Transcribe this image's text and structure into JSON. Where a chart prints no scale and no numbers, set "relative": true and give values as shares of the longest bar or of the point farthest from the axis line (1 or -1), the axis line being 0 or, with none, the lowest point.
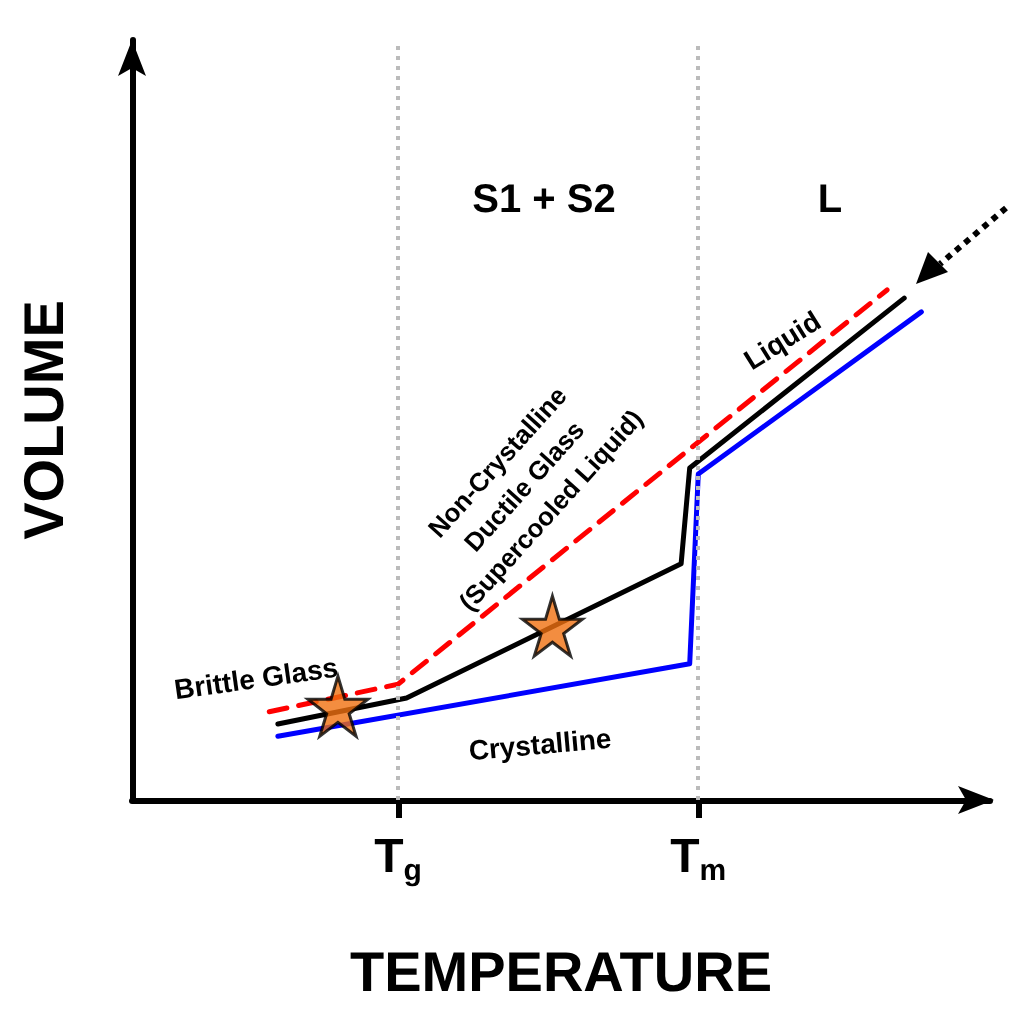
{
  "chart_data": {
    "type": "line",
    "relative": true,
    "xlabel": "TEMPERATURE",
    "ylabel": "VOLUME",
    "categories": [
      null,
      null,
      null,
      null,
      null,
      null,
      null,
      null,
      null,
      null,
      null,
      null,
      null,
      null,
      null,
      null,
      null,
      null,
      null,
      null,
      null,
      null,
      null,
      null,
      null,
      null,
      null,
      null,
      null,
      null,
      null,
      "T$_{g}$",
      null,
      null,
      null,
      null,
      null,
      null,
      null,
      null,
      null,
      null,
      null,
      null,
      null,
      null,
      null,
      null,
      null,
      null,
      null,
      null,
      null,
      null,
      null,
      null,
      null,
      null,
      null,
      null,
      null,
      null,
      null,
      null,
      null,
      null,
      "T$_{m}$",
      null,
      null,
      null,
      null,
      null,
      null,
      null,
      null,
      null,
      null,
      null,
      null,
      null,
      null,
      null,
      null,
      null,
      null,
      null,
      null,
      null,
      null,
      null,
      null,
      null,
      null,
      null,
      null,
      null,
      null,
      null,
      null,
      null,
      null
    ],
    "grid": false,
    "series": [
      {
        "color": "#000000",
        "line_style": "solid",
        "marker": "none",
        "values": [
          null,
          null,
          null,
          null,
          null,
          null,
          null,
          null,
          null,
          null,
          null,
          null,
          null,
          null,
          null,
          null,
          null,
          0.149,
          null,
          null,
          null,
          null,
          null,
          null,
          null,
          null,
          null,
          null,
          null,
          null,
          null,
          null,
          0.2,
          null,
          null,
          null,
          null,
          null,
          null,
          null,
          null,
          null,
          null,
          null,
          null,
          null,
          null,
          null,
          null,
          null,
          null,
          null,
          null,
          null,
          null,
          null,
          null,
          null,
          null,
          null,
          null,
          null,
          null,
          null,
          0.463,
          0.651,
          null,
          null,
          null,
          null,
          null,
          null,
          null,
          null,
          null,
          null,
          null,
          null,
          null,
          null,
          null,
          null,
          null,
          null,
          null,
          null,
          null,
          null,
          null,
          null,
          0.984,
          null,
          null,
          null,
          null,
          null,
          null,
          null,
          null,
          null,
          null
        ]
      },
      {
        "color": "#ff0000",
        "line_style": "dashed",
        "marker": "none",
        "values": [
          null,
          null,
          null,
          null,
          null,
          null,
          null,
          null,
          null,
          null,
          null,
          null,
          null,
          null,
          null,
          null,
          0.173,
          null,
          null,
          null,
          null,
          null,
          null,
          null,
          null,
          null,
          null,
          null,
          null,
          null,
          null,
          0.227,
          null,
          null,
          null,
          null,
          null,
          null,
          null,
          null,
          null,
          null,
          null,
          null,
          null,
          null,
          null,
          null,
          null,
          null,
          null,
          null,
          null,
          null,
          null,
          null,
          null,
          null,
          null,
          null,
          null,
          null,
          null,
          null,
          null,
          null,
          null,
          null,
          null,
          null,
          null,
          null,
          null,
          null,
          null,
          null,
          null,
          null,
          null,
          null,
          null,
          null,
          null,
          null,
          null,
          null,
          null,
          null,
          1,
          null,
          null,
          null,
          null,
          null,
          null,
          null,
          null,
          null,
          null,
          null,
          null
        ]
      },
      {
        "color": "#0000ff",
        "line_style": "solid",
        "marker": "none",
        "values": [
          null,
          null,
          null,
          null,
          null,
          null,
          null,
          null,
          null,
          null,
          null,
          null,
          null,
          null,
          null,
          null,
          null,
          0.125,
          null,
          null,
          null,
          null,
          null,
          null,
          null,
          null,
          null,
          null,
          null,
          null,
          null,
          null,
          null,
          null,
          null,
          null,
          null,
          null,
          null,
          null,
          null,
          null,
          null,
          null,
          null,
          null,
          null,
          null,
          null,
          null,
          null,
          null,
          null,
          null,
          null,
          null,
          null,
          null,
          null,
          null,
          null,
          null,
          null,
          null,
          null,
          0.267,
          0.639,
          null,
          null,
          null,
          null,
          null,
          null,
          null,
          null,
          null,
          null,
          null,
          null,
          null,
          null,
          null,
          null,
          null,
          null,
          null,
          null,
          null,
          null,
          null,
          null,
          null,
          0.957,
          null,
          null,
          null,
          null,
          null,
          null,
          null,
          null
        ]
      },
      {
        "type": "scatter",
        "color": "#f07010",
        "marker": "star",
        "values": [
          null,
          null,
          null,
          null,
          null,
          null,
          null,
          null,
          null,
          null,
          null,
          null,
          null,
          null,
          null,
          null,
          null,
          null,
          null,
          null,
          null,
          null,
          null,
          null,
          0.184,
          null,
          null,
          null,
          null,
          null,
          null,
          null,
          null,
          null,
          null,
          null,
          null,
          null,
          null,
          null,
          null,
          null,
          null,
          null,
          null,
          null,
          null,
          null,
          null,
          0.341,
          null,
          null,
          null,
          null,
          null,
          null,
          null,
          null,
          null,
          null,
          null,
          null,
          null,
          null,
          null,
          null,
          null,
          null,
          null,
          null,
          null,
          null,
          null,
          null,
          null,
          null,
          null,
          null,
          null,
          null,
          null,
          null,
          null,
          null,
          null,
          null,
          null,
          null,
          null,
          null,
          null,
          null,
          null,
          null,
          null,
          null,
          null,
          null,
          null,
          null,
          null
        ]
      }
    ],
    "ref_lines": [
      {
        "axis": "x",
        "value": "T$_{g}$",
        "color": "#bbbbbb",
        "line_style": "dotted"
      },
      {
        "axis": "x",
        "value": "T$_{m}$",
        "color": "#bbbbbb",
        "line_style": "dotted"
      }
    ],
    "annotations": [
      "S1 + S2",
      "L",
      "Brittle Glass",
      "Crystalline",
      "Liquid",
      "Non-Crystalline\nDuctile Glass\n(Supercooled Liquid)"
    ]
  }
}
